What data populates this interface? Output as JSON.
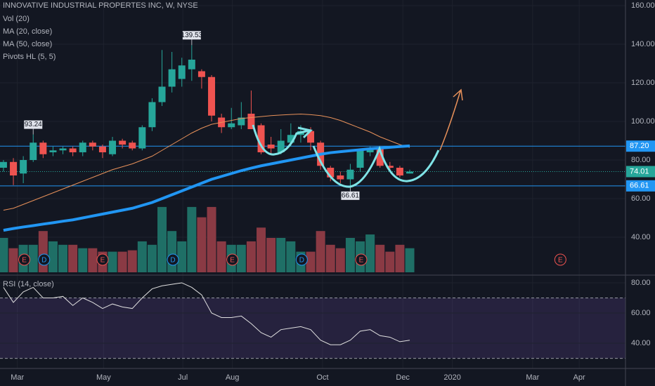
{
  "chart_data": [
    {
      "type": "candlestick",
      "title": "INNOVATIVE INDUSTRIAL PROPERTES INC, W, NYSE",
      "indicators": [
        "Vol (20)",
        "MA (20, close)",
        "MA (50, close)",
        "Pivots HL (5, 5)"
      ],
      "xlim": [
        -0.35,
        62.77
      ],
      "xticks": [
        {
          "value": 1.4,
          "label": "Mar"
        },
        {
          "value": 10.1,
          "label": "May"
        },
        {
          "value": 18.1,
          "label": "Jul"
        },
        {
          "value": 23.1,
          "label": "Aug"
        },
        {
          "value": 32.2,
          "label": "Oct"
        },
        {
          "value": 40.3,
          "label": "Dec"
        },
        {
          "value": 45.3,
          "label": "2020"
        },
        {
          "value": 53.4,
          "label": "Mar"
        },
        {
          "value": 58.1,
          "label": "Apr"
        }
      ],
      "ylim": [
        21.1,
        162.9
      ],
      "yticks": [
        {
          "value": 40,
          "label": "40.00"
        },
        {
          "value": 60,
          "label": "60.00"
        },
        {
          "value": 80,
          "label": "80.00"
        },
        {
          "value": 100,
          "label": "100.00"
        },
        {
          "value": 120,
          "label": "120.00"
        },
        {
          "value": 140,
          "label": "140.00"
        },
        {
          "value": 160,
          "label": "160.00"
        }
      ],
      "up_color": "#26a69a",
      "down_color": "#ef5350",
      "candles": {
        "open": [
          76,
          79,
          73,
          80,
          89,
          84,
          85,
          86,
          84,
          89,
          87,
          83,
          90,
          89,
          86,
          97,
          110,
          118,
          122,
          127,
          126,
          123,
          102,
          97,
          98,
          104,
          98,
          88,
          84,
          89,
          93,
          95,
          89,
          76,
          72,
          70,
          76,
          84,
          86,
          77,
          76,
          73
        ],
        "high": [
          80,
          81,
          82,
          93.24,
          90,
          87,
          87,
          87,
          90,
          90,
          88,
          92,
          91,
          90,
          98,
          112,
          137,
          136,
          133,
          139.53,
          127,
          124,
          104,
          107,
          110,
          116,
          99,
          92,
          96,
          99,
          98,
          97,
          90,
          77,
          74,
          78,
          86,
          87,
          87,
          79,
          77,
          75
        ],
        "low": [
          74,
          67,
          68,
          79,
          81,
          82,
          83,
          82,
          82,
          85,
          81,
          82,
          86,
          85,
          85,
          95,
          108,
          115,
          118,
          121,
          117,
          100,
          94,
          96,
          96,
          96,
          83,
          83,
          83,
          87,
          89,
          85,
          75,
          69,
          68,
          66.61,
          74,
          82,
          76,
          74,
          71,
          73
        ],
        "close": [
          79,
          72,
          80,
          89,
          83,
          85,
          86,
          84,
          89,
          87,
          84,
          90,
          88,
          86,
          97,
          110,
          118,
          127,
          129,
          132,
          123,
          103,
          97,
          99,
          102,
          96,
          84,
          86,
          90,
          93,
          95,
          89,
          77,
          71,
          70,
          75,
          85,
          86,
          77,
          76,
          72,
          74.01
        ]
      },
      "volume": {
        "ylim": [
          0,
          100
        ],
        "up_color": "#1f6f66",
        "down_color": "#8a3a44",
        "values": [
          50,
          35,
          40,
          40,
          60,
          45,
          40,
          40,
          35,
          35,
          30,
          30,
          30,
          32,
          45,
          40,
          95,
          60,
          45,
          95,
          80,
          95,
          45,
          40,
          40,
          45,
          65,
          50,
          50,
          45,
          30,
          30,
          60,
          40,
          35,
          50,
          45,
          55,
          40,
          30,
          40,
          35
        ]
      },
      "series": [
        {
          "name": "MA (20, close)",
          "color": "#e8915a",
          "width": 1,
          "values": [
            54,
            55,
            57,
            59,
            61,
            63,
            65,
            67,
            69,
            71,
            73,
            75,
            76.5,
            78,
            80,
            82,
            85,
            88,
            91,
            94,
            96.5,
            98.5,
            99.5,
            100.5,
            101.5,
            102,
            102.5,
            103,
            103.3,
            103.6,
            103.8,
            103.5,
            103,
            102,
            100.5,
            98.5,
            96.5,
            94.5,
            92,
            90,
            88,
            86.5
          ]
        },
        {
          "name": "MA (50, close)",
          "color": "#2196f3",
          "width": 4,
          "values": [
            43.6,
            44.5,
            45.3,
            46,
            46.8,
            47.5,
            48.3,
            49,
            50,
            51,
            52,
            53,
            54,
            55,
            56.5,
            58,
            60,
            62,
            64,
            66,
            68,
            70,
            71.5,
            73,
            74.5,
            75.8,
            77,
            78,
            79,
            80,
            81,
            82,
            83,
            83.8,
            84.3,
            84.8,
            85.3,
            85.8,
            86.2,
            86.6,
            87,
            87.3
          ]
        }
      ],
      "hlines": [
        {
          "value": 87.2,
          "label": "87.20",
          "color": "#2196f3",
          "dash": false
        },
        {
          "value": 74.01,
          "label": "74.01",
          "color": "#26a69a",
          "dash": true
        },
        {
          "value": 66.61,
          "label": "66.61",
          "color": "#2196f3",
          "dash": false
        }
      ],
      "events": [
        {
          "label": "E",
          "x": 2.1,
          "color": "#ef5350"
        },
        {
          "label": "D",
          "x": 4.1,
          "color": "#2196f3"
        },
        {
          "label": "E",
          "x": 10.0,
          "color": "#ef5350"
        },
        {
          "label": "D",
          "x": 17.1,
          "color": "#2196f3"
        },
        {
          "label": "E",
          "x": 23.1,
          "color": "#ef5350"
        },
        {
          "label": "D",
          "x": 30.1,
          "color": "#2196f3"
        },
        {
          "label": "E",
          "x": 36.1,
          "color": "#ef5350"
        },
        {
          "label": "E",
          "x": 56.2,
          "color": "#ef5350"
        }
      ]
    },
    {
      "type": "line",
      "title": "RSI (14, close)",
      "ylim": [
        23.3,
        83.7
      ],
      "yticks": [
        {
          "value": 40,
          "label": "40.00"
        },
        {
          "value": 60,
          "label": "60.00"
        },
        {
          "value": 80,
          "label": "80.00"
        }
      ],
      "band": [
        30,
        70
      ],
      "band_color": "#7e57c2",
      "color": "#e0e0e0",
      "values": [
        77,
        67,
        74,
        77,
        70,
        70,
        71,
        65,
        70,
        67,
        63,
        66,
        64,
        63,
        70,
        76,
        78,
        79,
        80,
        77,
        72,
        60,
        57,
        57,
        58,
        53,
        47,
        44,
        49,
        50,
        51,
        49,
        42,
        39,
        39,
        42,
        48,
        49,
        45,
        44,
        41,
        42
      ]
    }
  ]
}
